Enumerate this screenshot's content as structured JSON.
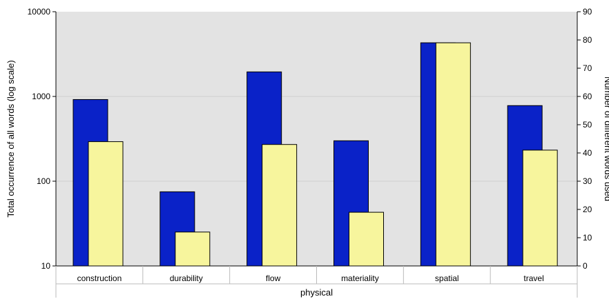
{
  "chart_data": {
    "type": "bar",
    "group_label": "physical",
    "categories": [
      "construction",
      "durability",
      "flow",
      "materiality",
      "spatial",
      "travel"
    ],
    "series": [
      {
        "axis": "left",
        "color": "#0a22c8",
        "values": [
          920,
          75,
          1950,
          300,
          4300,
          780
        ]
      },
      {
        "axis": "right",
        "color": "#f7f59d",
        "values": [
          44,
          12,
          43,
          19,
          79,
          41
        ]
      }
    ],
    "ylabel_left": "Total occurrence of all words (log scale)",
    "ylabel_right": "Number of different words used",
    "y_left": {
      "scale": "log",
      "range": [
        10,
        10000
      ],
      "ticks": [
        "10",
        "100",
        "1000",
        "10000"
      ]
    },
    "y_right": {
      "scale": "linear",
      "range": [
        0,
        90
      ],
      "ticks": [
        "0",
        "10",
        "20",
        "30",
        "40",
        "50",
        "60",
        "70",
        "80",
        "90"
      ]
    },
    "grid": true,
    "plot_background": "#e3e3e3"
  }
}
